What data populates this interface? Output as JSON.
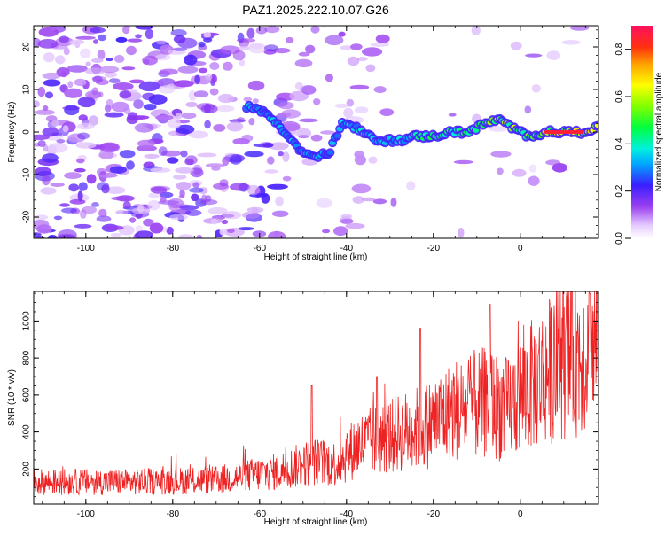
{
  "title": "PAZ1.2025.222.10.07.G26",
  "chart_data": [
    {
      "type": "heatmap",
      "xlabel": "Height of straight line (km)",
      "ylabel": "Frequency (Hz)",
      "xlim": [
        -112,
        18
      ],
      "ylim": [
        -25,
        25
      ],
      "xticks": [
        -100,
        -80,
        -60,
        -40,
        -20,
        0
      ],
      "yticks": [
        -20,
        -10,
        0,
        10,
        20
      ],
      "ridge": {
        "description_points": [
          {
            "x": -62,
            "y": 6
          },
          {
            "x": -58,
            "y": 4
          },
          {
            "x": -54,
            "y": 0
          },
          {
            "x": -51,
            "y": -4
          },
          {
            "x": -48,
            "y": -6
          },
          {
            "x": -44,
            "y": -5
          },
          {
            "x": -41,
            "y": 2
          },
          {
            "x": -38,
            "y": 1
          },
          {
            "x": -35,
            "y": -1
          },
          {
            "x": -32,
            "y": -2
          },
          {
            "x": -28,
            "y": -2
          },
          {
            "x": -24,
            "y": -1
          },
          {
            "x": -20,
            "y": -1
          },
          {
            "x": -16,
            "y": 0
          },
          {
            "x": -12,
            "y": 0
          },
          {
            "x": -8,
            "y": 2
          },
          {
            "x": -5,
            "y": 3
          },
          {
            "x": -2,
            "y": 1
          },
          {
            "x": 2,
            "y": -1
          },
          {
            "x": 6,
            "y": 0
          },
          {
            "x": 10,
            "y": 0
          },
          {
            "x": 14,
            "y": 0
          },
          {
            "x": 18,
            "y": 1
          }
        ]
      },
      "colorbar": {
        "label": "Normalized spectral amplitude",
        "min": 0.0,
        "max": 0.9,
        "ticks": [
          "0.0",
          "0.2",
          "0.4",
          "0.6",
          "0.8"
        ]
      }
    },
    {
      "type": "line",
      "xlabel": "Height of straight line (km)",
      "ylabel": "SNR (10 * v/v)",
      "xlim": [
        -112,
        18
      ],
      "ylim": [
        10,
        1160
      ],
      "xticks": [
        -100,
        -80,
        -60,
        -40,
        -20,
        0
      ],
      "yticks": [
        200,
        400,
        600,
        800,
        1000
      ],
      "series": [
        {
          "color": "#ee2222",
          "trend": [
            {
              "x": -112,
              "y": 130
            },
            {
              "x": -90,
              "y": 130
            },
            {
              "x": -70,
              "y": 140
            },
            {
              "x": -55,
              "y": 190
            },
            {
              "x": -48,
              "y": 240
            },
            {
              "x": -42,
              "y": 230
            },
            {
              "x": -38,
              "y": 320
            },
            {
              "x": -30,
              "y": 380
            },
            {
              "x": -22,
              "y": 430
            },
            {
              "x": -15,
              "y": 520
            },
            {
              "x": -8,
              "y": 560
            },
            {
              "x": -3,
              "y": 520
            },
            {
              "x": 0,
              "y": 600
            },
            {
              "x": 5,
              "y": 700
            },
            {
              "x": 10,
              "y": 800
            },
            {
              "x": 18,
              "y": 850
            }
          ],
          "peaks": [
            {
              "x": -48,
              "y": 650
            },
            {
              "x": -33,
              "y": 700
            },
            {
              "x": -23,
              "y": 960
            },
            {
              "x": -7,
              "y": 1090
            },
            {
              "x": 16,
              "y": 1150
            }
          ]
        }
      ]
    }
  ]
}
